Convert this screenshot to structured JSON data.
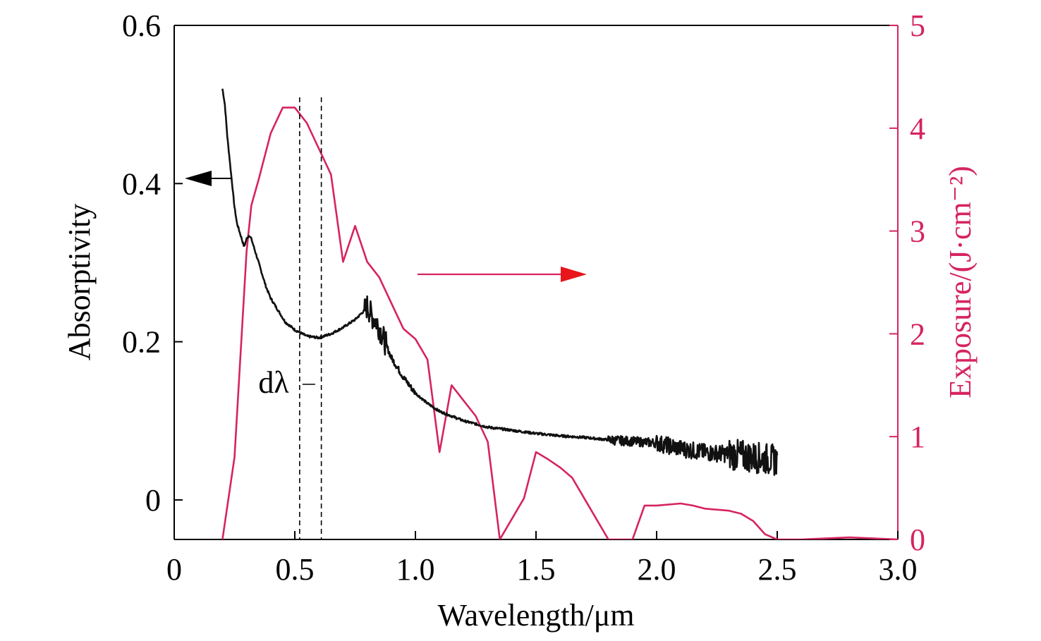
{
  "colors": {
    "left_axis": "#000000",
    "right_axis": "#d6245e",
    "absorptivity": "#111111",
    "exposure": "#d6245e",
    "arrow_right_head": "#e8161b"
  },
  "chart_data": {
    "type": "line",
    "title": "",
    "xlabel": "Wavelength/μm",
    "ylabel_left": "Absorptivity",
    "ylabel_right": "Exposure/(J·cm⁻²)",
    "xlim": [
      0,
      3.0
    ],
    "ylim_left": [
      -0.05,
      0.6
    ],
    "ylim_right": [
      0,
      5
    ],
    "x_ticks": [
      "0",
      "0.5",
      "1.0",
      "1.5",
      "2.0",
      "2.5",
      "3.0"
    ],
    "y_left_ticks": [
      "0",
      "0.2",
      "0.4",
      "0.6"
    ],
    "y_right_ticks": [
      "0",
      "1",
      "2",
      "3",
      "4",
      "5"
    ],
    "grid": false,
    "annotations": [
      {
        "text": "dλ",
        "type": "bandwidth",
        "x_range": [
          0.52,
          0.61
        ]
      }
    ],
    "series": [
      {
        "axis": "left",
        "x": [
          0.2,
          0.21,
          0.22,
          0.23,
          0.24,
          0.25,
          0.26,
          0.27,
          0.28,
          0.29,
          0.3,
          0.31,
          0.32,
          0.33,
          0.34,
          0.35,
          0.36,
          0.38,
          0.4,
          0.43,
          0.46,
          0.5,
          0.55,
          0.6,
          0.65,
          0.7,
          0.75,
          0.79,
          0.8,
          0.82,
          0.84,
          0.86,
          0.88,
          0.9,
          0.95,
          1.0,
          1.05,
          1.1,
          1.2,
          1.3,
          1.4,
          1.5,
          1.6,
          1.7,
          1.8,
          1.9,
          2.0,
          2.1,
          2.2,
          2.3,
          2.4,
          2.5
        ],
        "y": [
          0.52,
          0.5,
          0.46,
          0.43,
          0.4,
          0.37,
          0.35,
          0.34,
          0.33,
          0.32,
          0.33,
          0.335,
          0.33,
          0.32,
          0.31,
          0.3,
          0.29,
          0.27,
          0.255,
          0.24,
          0.225,
          0.215,
          0.207,
          0.205,
          0.21,
          0.218,
          0.228,
          0.24,
          0.245,
          0.232,
          0.225,
          0.21,
          0.195,
          0.18,
          0.155,
          0.135,
          0.122,
          0.112,
          0.1,
          0.092,
          0.088,
          0.084,
          0.081,
          0.079,
          0.076,
          0.074,
          0.072,
          0.065,
          0.06,
          0.058,
          0.054,
          0.05
        ]
      },
      {
        "axis": "right",
        "x": [
          0.2,
          0.25,
          0.3,
          0.32,
          0.35,
          0.4,
          0.45,
          0.5,
          0.55,
          0.6,
          0.65,
          0.7,
          0.75,
          0.8,
          0.85,
          0.9,
          0.95,
          1.0,
          1.05,
          1.1,
          1.15,
          1.2,
          1.25,
          1.3,
          1.35,
          1.4,
          1.45,
          1.5,
          1.55,
          1.6,
          1.65,
          1.7,
          1.75,
          1.8,
          1.85,
          1.9,
          1.95,
          2.0,
          2.1,
          2.15,
          2.2,
          2.3,
          2.35,
          2.4,
          2.45,
          2.5,
          2.6,
          2.8,
          3.0
        ],
        "y": [
          0.0,
          0.8,
          2.8,
          3.25,
          3.5,
          3.95,
          4.2,
          4.2,
          4.05,
          3.8,
          3.55,
          2.7,
          3.05,
          2.7,
          2.55,
          2.3,
          2.05,
          1.95,
          1.75,
          0.85,
          1.5,
          1.35,
          1.2,
          0.95,
          0.0,
          0.2,
          0.4,
          0.85,
          0.78,
          0.7,
          0.6,
          0.4,
          0.2,
          0.0,
          0.0,
          0.0,
          0.33,
          0.33,
          0.35,
          0.33,
          0.3,
          0.28,
          0.25,
          0.18,
          0.05,
          0.0,
          0.0,
          0.02,
          0.0
        ]
      }
    ]
  }
}
